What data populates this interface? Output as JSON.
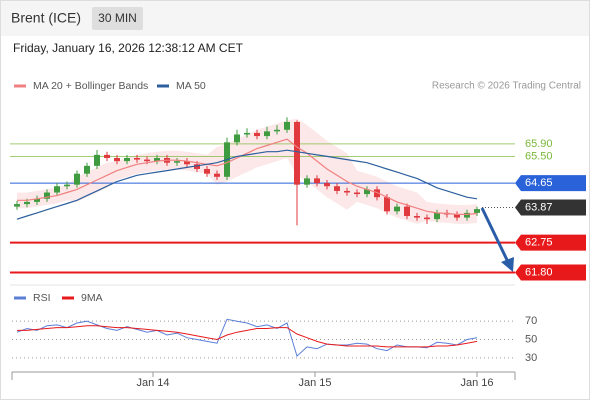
{
  "header": {
    "symbol": "Brent (ICE)",
    "interval": "30 MIN",
    "timestamp": "Friday, January 16, 2026 12:38:12 AM CET"
  },
  "chart_data": [
    {
      "type": "candlestick",
      "source": "Research © 2026 Trading Central",
      "xlim": [
        0,
        50.3
      ],
      "ylim": [
        61.4,
        67.3
      ],
      "up_color": "#3f9b3f",
      "down_color": "#e0393e",
      "open": [
        63.9,
        63.98,
        64.05,
        64.15,
        64.35,
        64.55,
        64.6,
        64.95,
        65.2,
        65.55,
        65.45,
        65.35,
        65.45,
        65.4,
        65.35,
        65.45,
        65.3,
        65.35,
        65.25,
        65.1,
        64.95,
        64.85,
        65.95,
        66.2,
        66.25,
        66.15,
        66.3,
        66.35,
        66.6,
        64.6,
        64.8,
        64.65,
        64.55,
        64.4,
        64.35,
        64.3,
        64.45,
        64.2,
        63.75,
        63.9,
        63.6,
        63.55,
        63.5,
        63.7,
        63.65,
        63.55,
        63.7
      ],
      "high": [
        64.08,
        64.15,
        64.25,
        64.45,
        64.65,
        64.7,
        65.05,
        65.3,
        65.7,
        65.65,
        65.55,
        65.55,
        65.55,
        65.5,
        65.55,
        65.55,
        65.45,
        65.45,
        65.35,
        65.2,
        65.05,
        66.1,
        66.35,
        66.4,
        66.35,
        66.45,
        66.5,
        66.75,
        66.65,
        64.9,
        64.9,
        64.75,
        64.65,
        64.5,
        64.45,
        64.55,
        64.55,
        64.3,
        64.0,
        64.0,
        63.7,
        63.65,
        63.8,
        63.8,
        63.75,
        63.8,
        63.9
      ],
      "low": [
        63.8,
        63.88,
        63.95,
        64.05,
        64.25,
        64.45,
        64.5,
        64.85,
        65.1,
        65.35,
        65.25,
        65.25,
        65.3,
        65.25,
        65.25,
        65.2,
        65.2,
        65.15,
        65.0,
        64.85,
        64.75,
        64.75,
        65.85,
        66.1,
        66.05,
        66.05,
        66.2,
        66.25,
        63.3,
        64.5,
        64.55,
        64.45,
        64.3,
        64.25,
        64.2,
        64.2,
        64.1,
        63.65,
        63.65,
        63.5,
        63.45,
        63.35,
        63.4,
        63.55,
        63.45,
        63.45,
        63.6
      ],
      "close": [
        63.98,
        64.05,
        64.15,
        64.35,
        64.55,
        64.6,
        64.95,
        65.2,
        65.55,
        65.45,
        65.35,
        65.45,
        65.4,
        65.35,
        65.45,
        65.3,
        65.35,
        65.25,
        65.1,
        64.95,
        64.85,
        65.95,
        66.2,
        66.25,
        66.15,
        66.3,
        66.35,
        66.6,
        64.6,
        64.8,
        64.65,
        64.55,
        64.4,
        64.35,
        64.3,
        64.45,
        64.2,
        63.75,
        63.9,
        63.6,
        63.55,
        63.5,
        63.7,
        63.65,
        63.55,
        63.7,
        63.82
      ],
      "series": [
        {
          "name": "MA 20 + Bollinger Bands",
          "color": "#f08080",
          "values": [
            64.1,
            64.1,
            64.15,
            64.2,
            64.25,
            64.35,
            64.45,
            64.6,
            64.75,
            64.9,
            65.05,
            65.15,
            65.25,
            65.3,
            65.35,
            65.38,
            65.38,
            65.35,
            65.3,
            65.25,
            65.2,
            65.3,
            65.45,
            65.6,
            65.75,
            65.85,
            65.95,
            66.05,
            65.8,
            65.6,
            65.35,
            65.1,
            64.9,
            64.7,
            64.55,
            64.45,
            64.35,
            64.2,
            64.05,
            63.95,
            63.85,
            63.75,
            63.7,
            63.68,
            63.65,
            63.65,
            63.68
          ],
          "upper": [
            64.35,
            64.35,
            64.4,
            64.45,
            64.5,
            64.6,
            64.85,
            65.0,
            65.15,
            65.3,
            65.35,
            65.45,
            65.55,
            65.6,
            65.65,
            65.68,
            65.68,
            65.65,
            65.6,
            65.55,
            65.8,
            65.9,
            66.05,
            66.2,
            66.35,
            66.45,
            66.55,
            66.65,
            66.7,
            66.5,
            66.25,
            66.0,
            65.8,
            65.6,
            65.05,
            64.95,
            64.85,
            64.7,
            64.55,
            64.45,
            64.35,
            64.05,
            64.0,
            63.98,
            63.95,
            63.95,
            63.98
          ],
          "lower": [
            63.85,
            63.85,
            63.9,
            63.95,
            64.0,
            64.1,
            64.05,
            64.2,
            64.35,
            64.5,
            64.75,
            64.85,
            64.95,
            65.0,
            65.05,
            65.08,
            65.08,
            65.05,
            65.0,
            64.95,
            64.6,
            64.7,
            64.85,
            65.0,
            65.15,
            65.25,
            65.35,
            65.45,
            64.9,
            64.7,
            64.45,
            64.2,
            64.0,
            63.8,
            64.05,
            63.95,
            63.85,
            63.7,
            63.55,
            63.45,
            63.35,
            63.45,
            63.4,
            63.38,
            63.35,
            63.35,
            63.38
          ]
        },
        {
          "name": "MA 50",
          "color": "#2c5f9e",
          "values": [
            63.5,
            63.6,
            63.7,
            63.8,
            63.9,
            64.0,
            64.1,
            64.25,
            64.4,
            64.55,
            64.7,
            64.8,
            64.9,
            64.95,
            65.0,
            65.05,
            65.1,
            65.15,
            65.2,
            65.25,
            65.3,
            65.4,
            65.5,
            65.55,
            65.6,
            65.65,
            65.65,
            65.7,
            65.65,
            65.6,
            65.55,
            65.5,
            65.45,
            65.4,
            65.35,
            65.3,
            65.2,
            65.1,
            65.0,
            64.9,
            64.8,
            64.65,
            64.5,
            64.4,
            64.3,
            64.2,
            64.15
          ]
        }
      ],
      "levels": [
        {
          "value": 65.9,
          "label": "65.90",
          "color": "#7cb83a",
          "style": "line"
        },
        {
          "value": 65.5,
          "label": "65.50",
          "color": "#7cb83a",
          "style": "line"
        },
        {
          "value": 64.65,
          "label": "64.65",
          "color": "#2962d9",
          "style": "badge"
        },
        {
          "value": 63.87,
          "label": "63.87",
          "color": "#333333",
          "style": "current"
        },
        {
          "value": 62.75,
          "label": "62.75",
          "color": "#e8191b",
          "style": "badge"
        },
        {
          "value": 61.8,
          "label": "61.80",
          "color": "#e8191b",
          "style": "badge"
        }
      ]
    },
    {
      "type": "line",
      "xlim": [
        0,
        50.3
      ],
      "ylim": [
        19,
        80
      ],
      "yticks": [
        30,
        50,
        70
      ],
      "grid": true,
      "xticks": [
        {
          "value": 14.1,
          "label": "Jan 14"
        },
        {
          "value": 30.3,
          "label": "Jan 15"
        },
        {
          "value": 46.5,
          "label": "Jan 16"
        }
      ],
      "series": [
        {
          "name": "RSI",
          "color": "#5b7fd6",
          "values": [
            58,
            62,
            60,
            65,
            66,
            63,
            68,
            70,
            66,
            62,
            60,
            64,
            61,
            58,
            60,
            55,
            57,
            52,
            50,
            48,
            46,
            72,
            70,
            68,
            64,
            66,
            62,
            68,
            32,
            42,
            40,
            45,
            44,
            44,
            46,
            45,
            40,
            38,
            44,
            42,
            42,
            41,
            47,
            46,
            44,
            50,
            52
          ]
        },
        {
          "name": "9MA",
          "color": "#e8191b",
          "values": [
            60,
            60,
            61,
            62,
            63,
            63,
            64,
            65,
            65,
            64,
            63,
            63,
            62,
            61,
            60,
            59,
            58,
            56,
            54,
            52,
            50,
            55,
            58,
            60,
            62,
            62,
            63,
            63,
            56,
            52,
            48,
            45,
            44,
            43,
            43,
            43,
            43,
            42,
            42,
            42,
            42,
            42,
            43,
            43,
            44,
            46,
            48
          ]
        }
      ]
    }
  ]
}
